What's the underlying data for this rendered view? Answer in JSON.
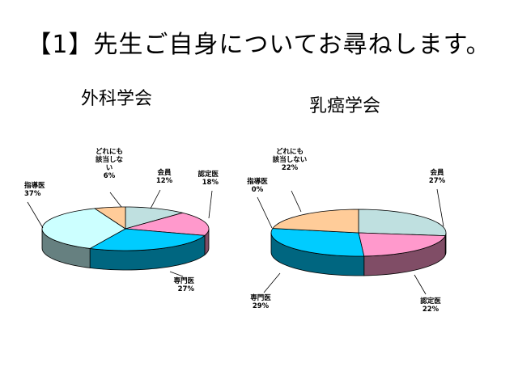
{
  "page_title": "【1】先生ご自身についてお尋ねします。",
  "colors": {
    "kaiin": "#bfe0e0",
    "nintei": "#ff99cc",
    "senmon": "#00ccff",
    "shido": "#ccffff",
    "none": "#ffcc99"
  },
  "chart_data": [
    {
      "type": "pie",
      "title": "外科学会",
      "slices": [
        {
          "label": "会員",
          "value": 12
        },
        {
          "label": "認定医",
          "value": 18
        },
        {
          "label": "専門医",
          "value": 27
        },
        {
          "label": "指導医",
          "value": 37
        },
        {
          "label": "どれにも該当しない",
          "value": 6
        }
      ],
      "labels": [
        {
          "lines": [
            "会員",
            "12%"
          ]
        },
        {
          "lines": [
            "認定医",
            "18%"
          ]
        },
        {
          "lines": [
            "専門医",
            "27%"
          ]
        },
        {
          "lines": [
            "指導医",
            "37%"
          ]
        },
        {
          "lines": [
            "どれにも",
            "該当しな",
            "い",
            "6%"
          ]
        }
      ]
    },
    {
      "type": "pie",
      "title": "乳癌学会",
      "slices": [
        {
          "label": "会員",
          "value": 27
        },
        {
          "label": "認定医",
          "value": 22
        },
        {
          "label": "専門医",
          "value": 29
        },
        {
          "label": "指導医",
          "value": 0
        },
        {
          "label": "どれにも該当しない",
          "value": 22
        }
      ],
      "labels": [
        {
          "lines": [
            "会員",
            "27%"
          ]
        },
        {
          "lines": [
            "認定医",
            "22%"
          ]
        },
        {
          "lines": [
            "専門医",
            "29%"
          ]
        },
        {
          "lines": [
            "指導医",
            "0%"
          ]
        },
        {
          "lines": [
            "どれにも",
            "該当しない",
            "22%"
          ]
        }
      ]
    }
  ]
}
